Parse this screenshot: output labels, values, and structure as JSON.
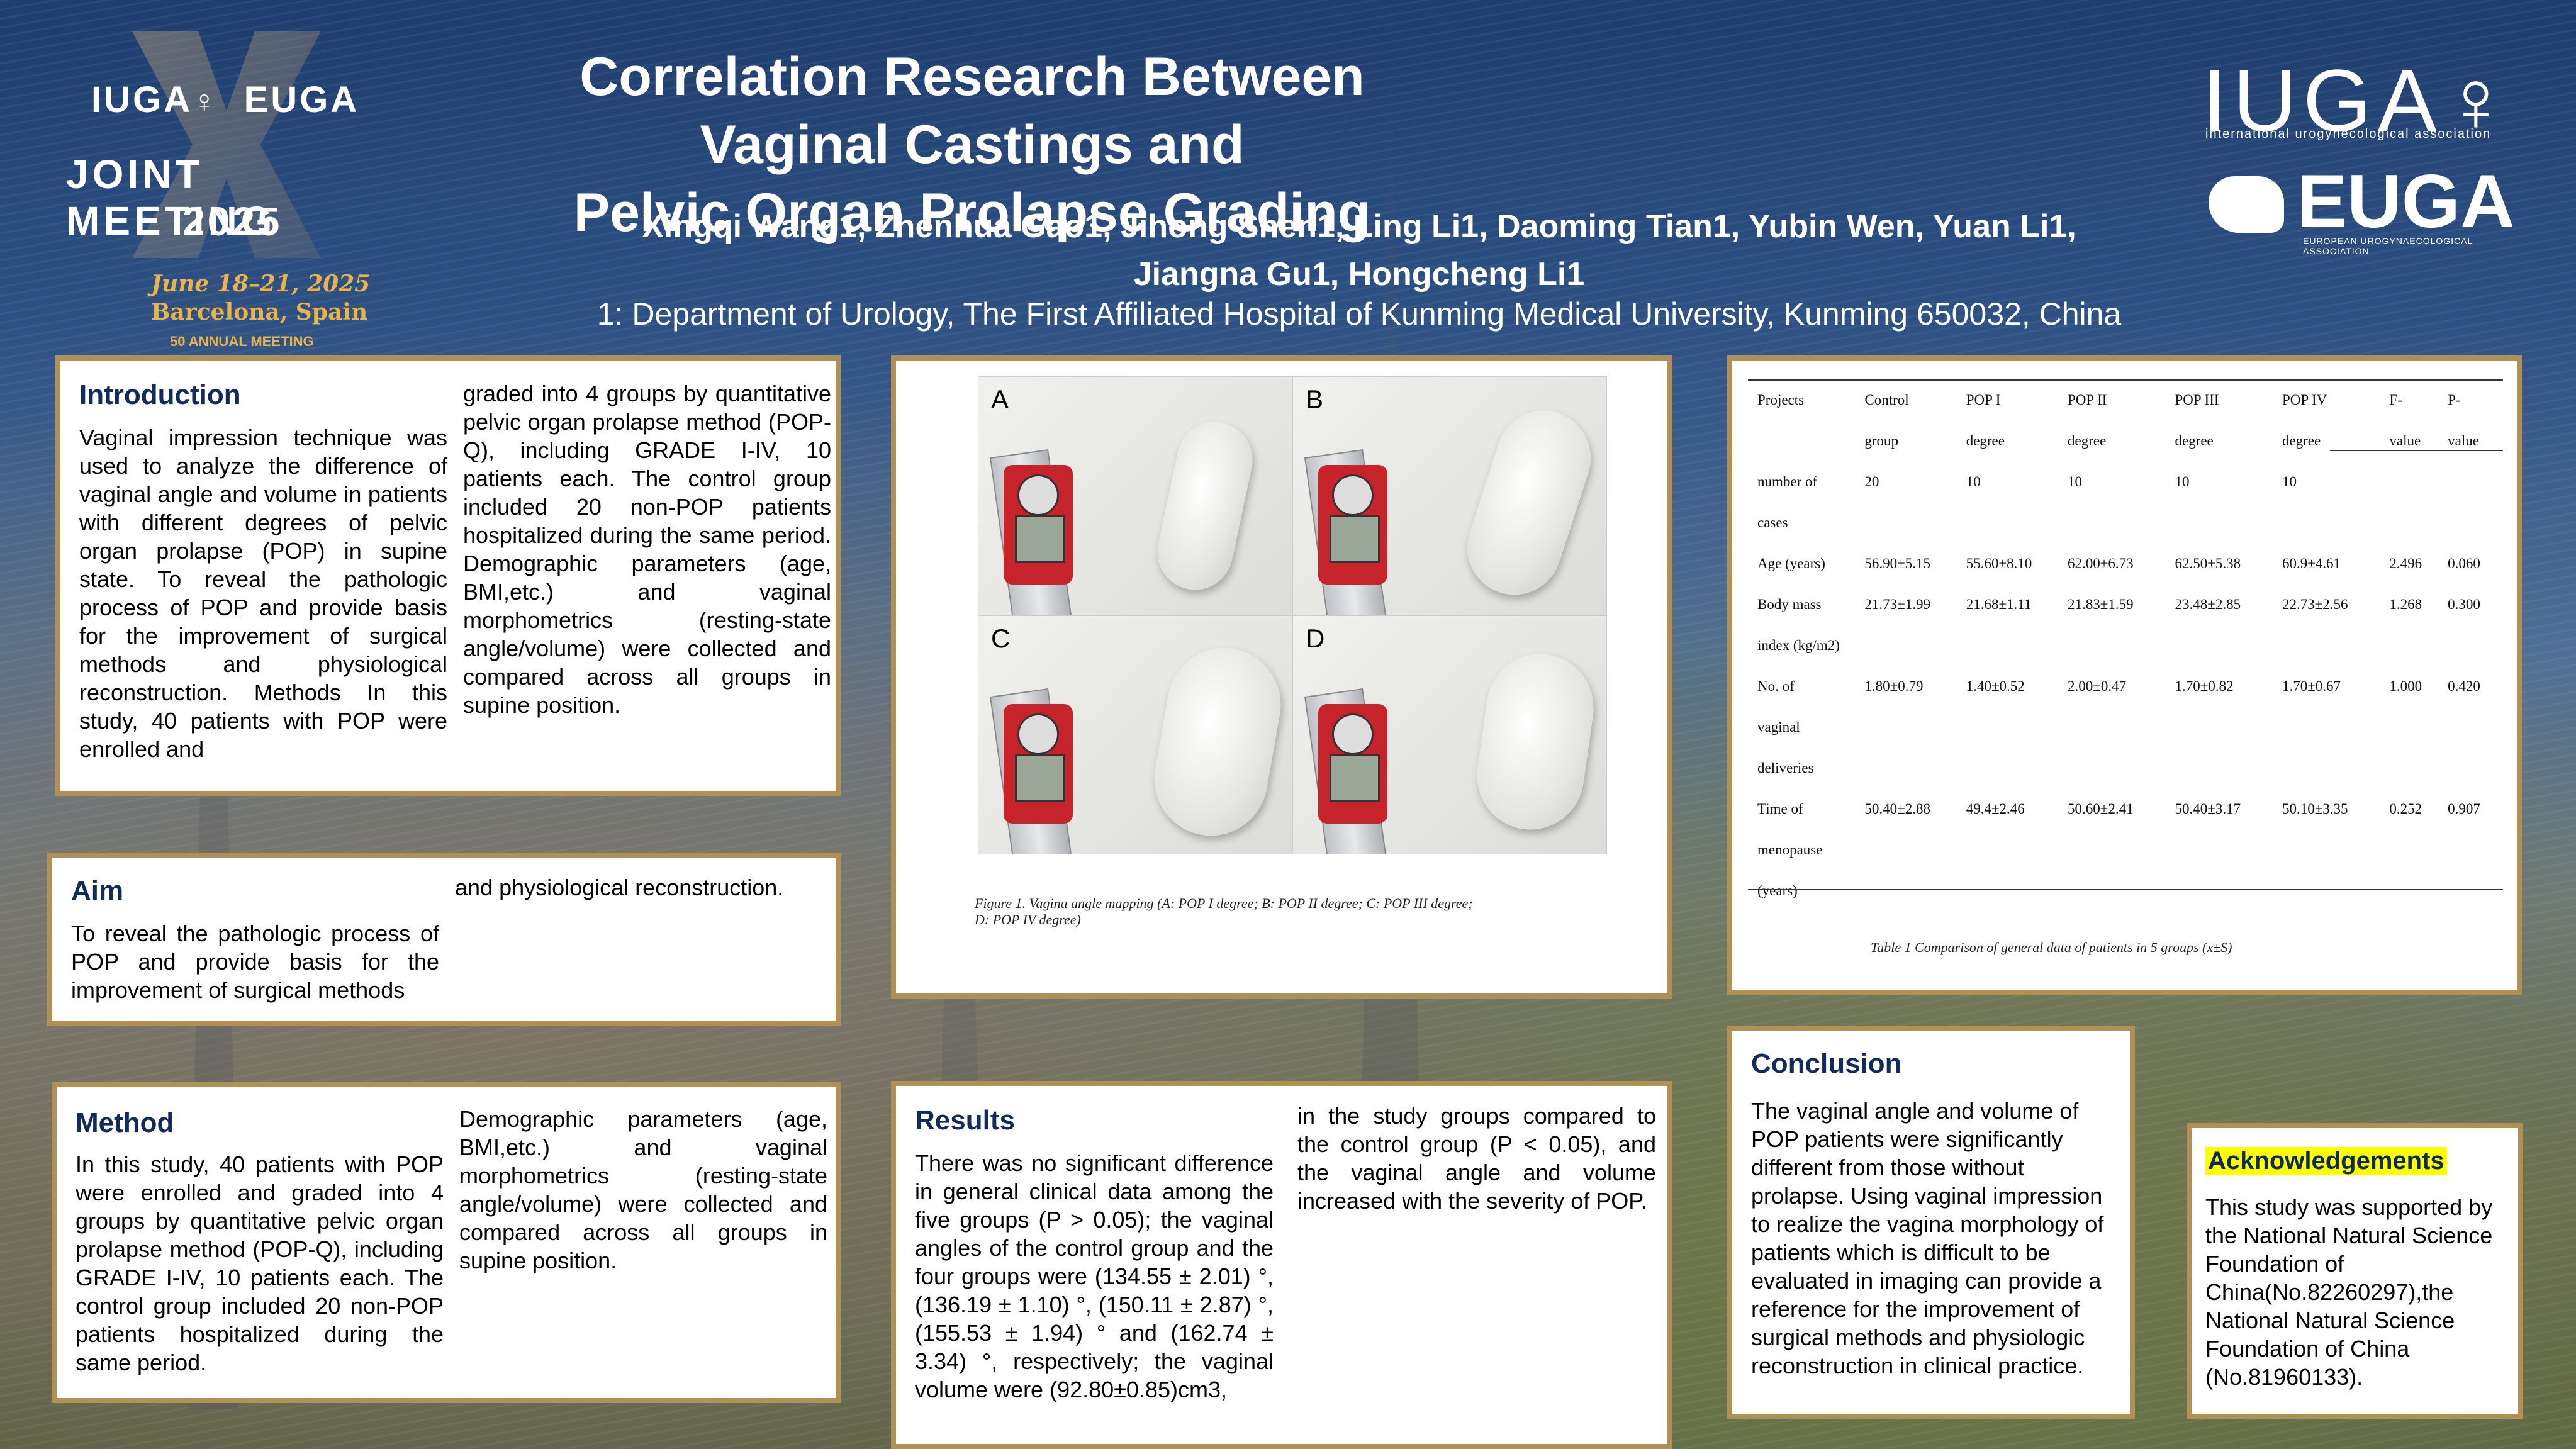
{
  "header": {
    "title_line1": "Correlation Research Between Vaginal Castings and",
    "title_line2": "Pelvic Organ Prolapse Grading",
    "authors_line1": "Xingqi Wang1, Zhenhua Gao1, Jihong Shen1, Ling Li1, Daoming Tian1, Yubin Wen, Yuan Li1,",
    "authors_line2": "Jiangna Gu1, Hongcheng Li1",
    "affiliation": "1: Department of Urology, The First Affiliated Hospital of Kunming Medical University, Kunming 650032, China"
  },
  "logo_left": {
    "brand": "IUGA",
    "brand_symbol": "♀",
    "brand2": "EUGA",
    "meeting_line1": "JOINT MEETING",
    "meeting_line2": "2025",
    "date": "June 18–21, 2025",
    "city": "Barcelona, Spain",
    "annual": "50 ANNUAL MEETING"
  },
  "logo_right": {
    "iuga": "IUGA♀",
    "iuga_sub": "international urogynecological association",
    "euga": "EUGA",
    "euga_sub": "EUROPEAN UROGYNAECOLOGICAL ASSOCIATION"
  },
  "introduction": {
    "heading": "Introduction",
    "col1": "Vaginal impression technique was used to analyze the difference of vaginal angle and volume in patients with different degrees of pelvic organ prolapse (POP) in supine state. To reveal the pathologic process of POP and provide basis for the improvement of surgical methods and physiological reconstruction. Methods In this study, 40 patients with POP were enrolled and",
    "col2": "graded into 4 groups by quantitative pelvic organ prolapse method (POP-Q), including GRADE I-IV, 10 patients each. The control group included 20 non-POP patients hospitalized during the same period. Demographic parameters (age, BMI,etc.) and vaginal morphometrics (resting-state angle/volume) were collected and compared across all groups in supine position."
  },
  "aim": {
    "heading": "Aim",
    "col1": "To reveal the pathologic process of POP and provide basis for the improvement of surgical methods",
    "col2": "and physiological reconstruction."
  },
  "method": {
    "heading": "Method",
    "col1": "In this study, 40 patients with POP were enrolled and graded into 4 groups by quantitative pelvic organ prolapse method (POP-Q), including GRADE I-IV, 10 patients each. The control group included 20 non-POP patients hospitalized during the same period.",
    "col2": "Demographic parameters (age, BMI,etc.) and vaginal morphometrics (resting-state angle/volume) were collected and compared across all groups in supine position."
  },
  "figure": {
    "labels": [
      "A",
      "B",
      "C",
      "D"
    ],
    "caption_line1": "Figure 1. Vagina angle mapping (A: POP I degree; B: POP II degree; C: POP III degree;",
    "caption_line2": "D: POP IV degree)"
  },
  "table": {
    "caption": "Table 1  Comparison of general data of patients in 5 groups (x±S)",
    "rows": [
      [
        "Projects",
        "Control",
        "POP I",
        "POP II",
        "POP III",
        "POP IV",
        "F-",
        "P-"
      ],
      [
        "",
        "group",
        "degree",
        "degree",
        "degree",
        "degree",
        "value",
        "value"
      ],
      [
        "number of",
        "20",
        "10",
        "10",
        "10",
        "10",
        "",
        ""
      ],
      [
        "cases",
        "",
        "",
        "",
        "",
        "",
        "",
        ""
      ],
      [
        "Age (years)",
        "56.90±5.15",
        "55.60±8.10",
        "62.00±6.73",
        "62.50±5.38",
        "60.9±4.61",
        "2.496",
        "0.060"
      ],
      [
        "Body mass",
        "21.73±1.99",
        "21.68±1.11",
        "21.83±1.59",
        "23.48±2.85",
        "22.73±2.56",
        "1.268",
        "0.300"
      ],
      [
        "index (kg/m2)",
        "",
        "",
        "",
        "",
        "",
        "",
        ""
      ],
      [
        "No. of",
        "1.80±0.79",
        "1.40±0.52",
        "2.00±0.47",
        "1.70±0.82",
        "1.70±0.67",
        "1.000",
        "0.420"
      ],
      [
        "vaginal",
        "",
        "",
        "",
        "",
        "",
        "",
        ""
      ],
      [
        "deliveries",
        "",
        "",
        "",
        "",
        "",
        "",
        ""
      ],
      [
        "Time of",
        "50.40±2.88",
        "49.4±2.46",
        "50.60±2.41",
        "50.40±3.17",
        "50.10±3.35",
        "0.252",
        "0.907"
      ],
      [
        "menopause",
        "",
        "",
        "",
        "",
        "",
        "",
        ""
      ],
      [
        "(years)",
        "",
        "",
        "",
        "",
        "",
        "",
        ""
      ]
    ]
  },
  "results": {
    "heading": "Results",
    "col1": "There was no significant difference in general clinical data among the five groups (P > 0.05); the vaginal angles of the control group and the four groups were (134.55 ± 2.01) °, (136.19 ± 1.10) °, (150.11 ± 2.87) °, (155.53 ± 1.94) ° and (162.74 ± 3.34) °, respectively; the vaginal volume were (92.80±0.85)cm3,",
    "col2": "in the study groups compared to the control group (P < 0.05), and the vaginal angle and volume increased with the severity of POP."
  },
  "conclusion": {
    "heading": "Conclusion",
    "text": "The vaginal angle and volume of POP patients were significantly different from those without prolapse. Using vaginal impression to realize the vagina morphology of patients which is difficult to be evaluated in imaging can provide a reference for the improvement of surgical methods and physiologic reconstruction in clinical practice."
  },
  "acknowledgements": {
    "heading": "Acknowledgements",
    "text": "This study was supported by the National Natural Science Foundation of China(No.82260297),the National Natural Science Foundation of China (No.81960133)."
  },
  "colors": {
    "panel_border": "#b09055",
    "heading": "#112b5b",
    "highlight": "#ffff00",
    "accent_gold": "#e9b24a"
  }
}
